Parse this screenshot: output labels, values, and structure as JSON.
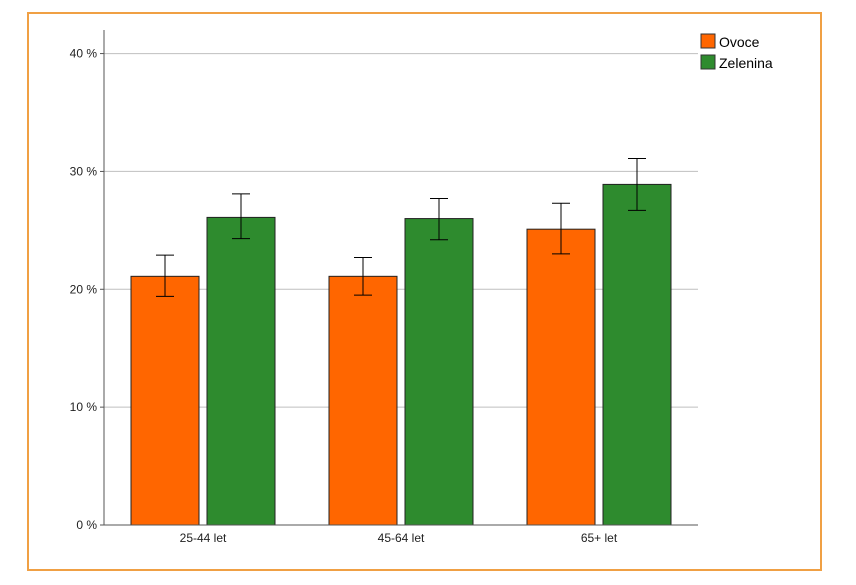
{
  "chart_data": {
    "type": "bar",
    "title": "",
    "xlabel": "",
    "ylabel": "",
    "categories": [
      "25-44 let",
      "45-64 let",
      "65+ let"
    ],
    "series": [
      {
        "name": "Ovoce",
        "color": "#ff6600",
        "values": [
          21.1,
          21.1,
          25.1
        ],
        "error_low": [
          19.4,
          19.5,
          23.0
        ],
        "error_high": [
          22.9,
          22.7,
          27.3
        ]
      },
      {
        "name": "Zelenina",
        "color": "#2e8b2e",
        "values": [
          26.1,
          26.0,
          28.9
        ],
        "error_low": [
          24.3,
          24.2,
          26.7
        ],
        "error_high": [
          28.1,
          27.7,
          31.1
        ]
      }
    ],
    "ylim": [
      0,
      42
    ],
    "yticks": [
      0,
      10,
      20,
      30,
      40
    ],
    "ytick_labels": [
      "0 %",
      "10 %",
      "20 %",
      "30 %",
      "40 %"
    ],
    "grid": true,
    "legend_position": "top-right"
  },
  "colors": {
    "frame": "#f0a044",
    "grid": "#bfbfbf",
    "axis": "#555555",
    "error_bar": "#000000"
  }
}
